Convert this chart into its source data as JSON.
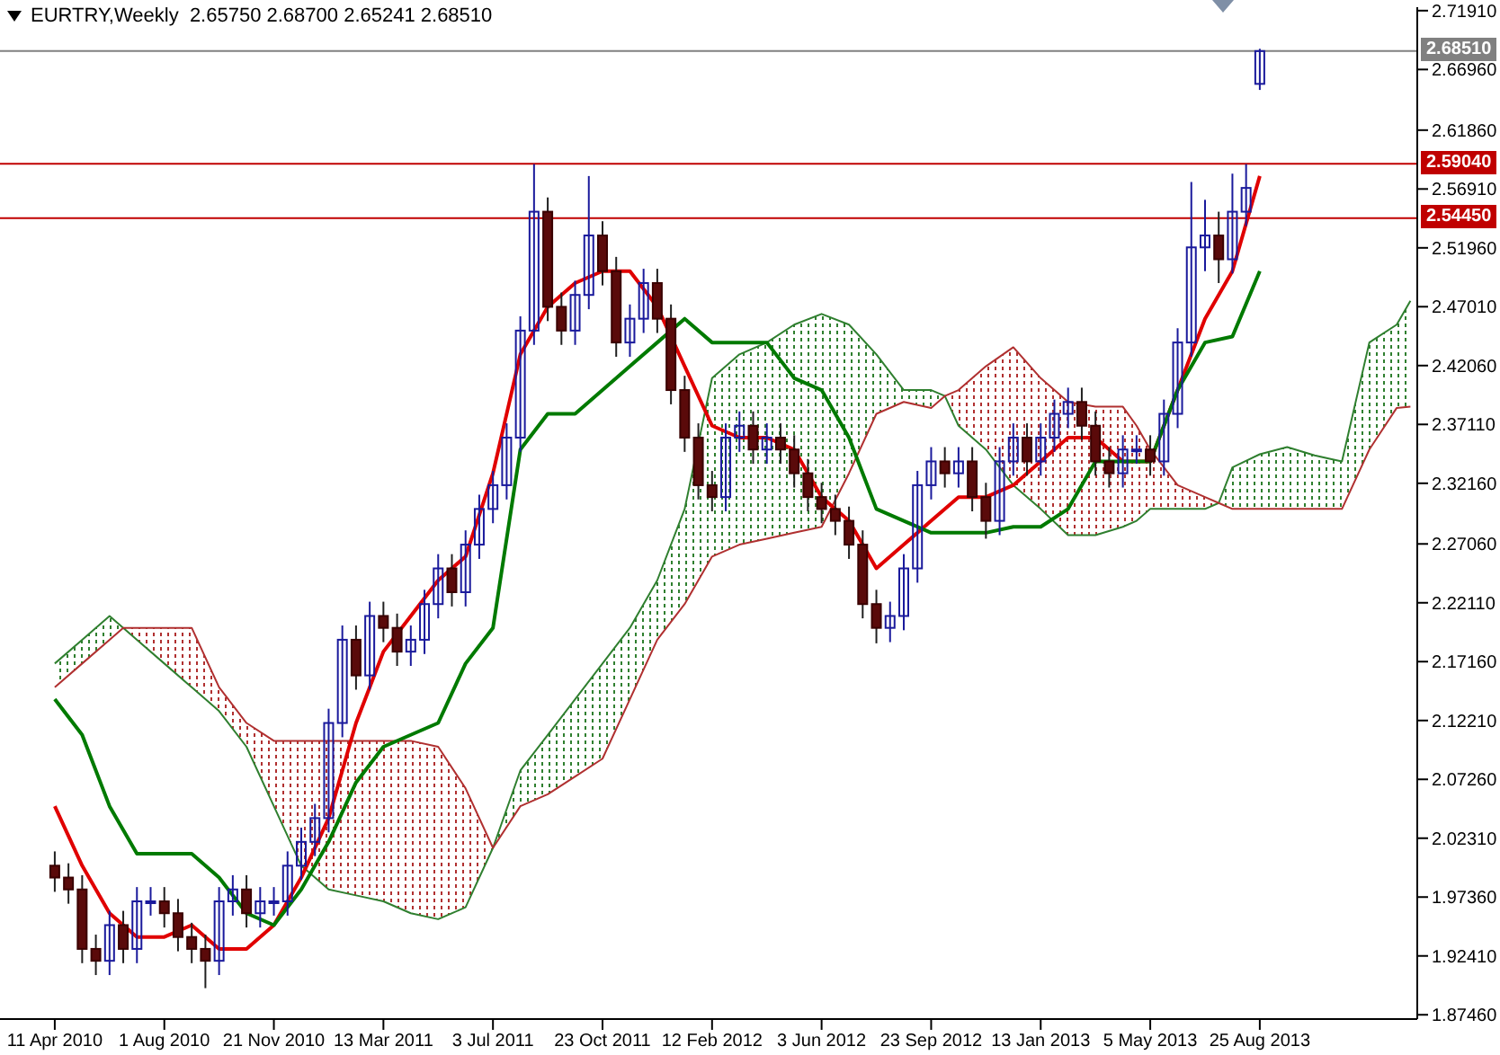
{
  "chart_data": {
    "type": "candlestick",
    "title": "EURTRY,Weekly  2.65750 2.68700 2.65241 2.68510",
    "x": [
      "2010-04-11",
      "2010-04-25",
      "2010-05-09",
      "2010-05-23",
      "2010-06-06",
      "2010-06-20",
      "2010-07-04",
      "2010-07-18",
      "2010-08-01",
      "2010-08-15",
      "2010-08-29",
      "2010-09-12",
      "2010-09-26",
      "2010-10-10",
      "2010-10-24",
      "2010-11-07",
      "2010-11-21",
      "2010-12-05",
      "2010-12-19",
      "2011-01-02",
      "2011-01-16",
      "2011-01-30",
      "2011-02-13",
      "2011-02-27",
      "2011-03-13",
      "2011-03-27",
      "2011-04-10",
      "2011-04-24",
      "2011-05-08",
      "2011-05-22",
      "2011-06-05",
      "2011-06-19",
      "2011-07-03",
      "2011-07-17",
      "2011-07-31",
      "2011-08-14",
      "2011-08-28",
      "2011-09-11",
      "2011-09-25",
      "2011-10-09",
      "2011-10-23",
      "2011-11-06",
      "2011-11-20",
      "2011-12-04",
      "2011-12-18",
      "2012-01-01",
      "2012-01-15",
      "2012-01-29",
      "2012-02-12",
      "2012-02-26",
      "2012-03-11",
      "2012-03-25",
      "2012-04-08",
      "2012-04-22",
      "2012-05-06",
      "2012-05-20",
      "2012-06-03",
      "2012-06-17",
      "2012-07-01",
      "2012-07-15",
      "2012-07-29",
      "2012-08-12",
      "2012-08-26",
      "2012-09-09",
      "2012-09-23",
      "2012-10-07",
      "2012-10-21",
      "2012-11-04",
      "2012-11-18",
      "2012-12-02",
      "2012-12-16",
      "2012-12-30",
      "2013-01-13",
      "2013-01-27",
      "2013-02-10",
      "2013-02-24",
      "2013-03-10",
      "2013-03-24",
      "2013-04-07",
      "2013-04-21",
      "2013-05-05",
      "2013-05-19",
      "2013-06-02",
      "2013-06-16",
      "2013-06-30",
      "2013-07-14",
      "2013-07-28",
      "2013-08-11",
      "2013-08-25"
    ],
    "ohlc": [
      [
        2.0,
        2.012,
        1.978,
        1.99
      ],
      [
        1.99,
        2.002,
        1.968,
        1.98
      ],
      [
        1.98,
        1.992,
        1.918,
        1.93
      ],
      [
        1.93,
        1.942,
        1.908,
        1.92
      ],
      [
        1.92,
        1.962,
        1.908,
        1.95
      ],
      [
        1.95,
        1.962,
        1.918,
        1.93
      ],
      [
        1.93,
        1.982,
        1.918,
        1.97
      ],
      [
        1.97,
        1.982,
        1.958,
        1.97
      ],
      [
        1.97,
        1.982,
        1.948,
        1.96
      ],
      [
        1.96,
        1.972,
        1.928,
        1.94
      ],
      [
        1.94,
        1.952,
        1.918,
        1.93
      ],
      [
        1.93,
        1.942,
        1.897,
        1.92
      ],
      [
        1.92,
        1.982,
        1.908,
        1.97
      ],
      [
        1.97,
        1.992,
        1.958,
        1.98
      ],
      [
        1.98,
        1.992,
        1.948,
        1.96
      ],
      [
        1.96,
        1.982,
        1.948,
        1.97
      ],
      [
        1.97,
        1.982,
        1.958,
        1.97
      ],
      [
        1.97,
        2.012,
        1.958,
        2.0
      ],
      [
        2.0,
        2.032,
        1.988,
        2.02
      ],
      [
        2.02,
        2.052,
        2.008,
        2.04
      ],
      [
        2.04,
        2.132,
        2.028,
        2.12
      ],
      [
        2.12,
        2.202,
        2.108,
        2.19
      ],
      [
        2.19,
        2.202,
        2.148,
        2.16
      ],
      [
        2.16,
        2.222,
        2.148,
        2.21
      ],
      [
        2.21,
        2.222,
        2.188,
        2.2
      ],
      [
        2.2,
        2.212,
        2.168,
        2.18
      ],
      [
        2.18,
        2.202,
        2.168,
        2.19
      ],
      [
        2.19,
        2.232,
        2.178,
        2.22
      ],
      [
        2.22,
        2.262,
        2.208,
        2.25
      ],
      [
        2.25,
        2.262,
        2.218,
        2.23
      ],
      [
        2.23,
        2.282,
        2.218,
        2.27
      ],
      [
        2.27,
        2.312,
        2.258,
        2.3
      ],
      [
        2.3,
        2.332,
        2.288,
        2.32
      ],
      [
        2.32,
        2.372,
        2.308,
        2.36
      ],
      [
        2.36,
        2.462,
        2.348,
        2.45
      ],
      [
        2.45,
        2.59,
        2.438,
        2.55
      ],
      [
        2.55,
        2.562,
        2.458,
        2.47
      ],
      [
        2.47,
        2.482,
        2.438,
        2.45
      ],
      [
        2.45,
        2.492,
        2.438,
        2.48
      ],
      [
        2.48,
        2.58,
        2.468,
        2.53
      ],
      [
        2.53,
        2.542,
        2.488,
        2.5
      ],
      [
        2.5,
        2.512,
        2.428,
        2.44
      ],
      [
        2.44,
        2.472,
        2.428,
        2.46
      ],
      [
        2.46,
        2.502,
        2.448,
        2.49
      ],
      [
        2.49,
        2.502,
        2.448,
        2.46
      ],
      [
        2.46,
        2.472,
        2.388,
        2.4
      ],
      [
        2.4,
        2.412,
        2.348,
        2.36
      ],
      [
        2.36,
        2.372,
        2.308,
        2.32
      ],
      [
        2.32,
        2.332,
        2.298,
        2.31
      ],
      [
        2.31,
        2.372,
        2.298,
        2.36
      ],
      [
        2.36,
        2.382,
        2.348,
        2.37
      ],
      [
        2.37,
        2.382,
        2.338,
        2.35
      ],
      [
        2.35,
        2.372,
        2.338,
        2.36
      ],
      [
        2.36,
        2.372,
        2.338,
        2.35
      ],
      [
        2.35,
        2.362,
        2.318,
        2.33
      ],
      [
        2.33,
        2.342,
        2.298,
        2.31
      ],
      [
        2.31,
        2.322,
        2.288,
        2.3
      ],
      [
        2.3,
        2.312,
        2.278,
        2.29
      ],
      [
        2.29,
        2.302,
        2.258,
        2.27
      ],
      [
        2.27,
        2.282,
        2.208,
        2.22
      ],
      [
        2.22,
        2.232,
        2.187,
        2.2
      ],
      [
        2.2,
        2.222,
        2.188,
        2.21
      ],
      [
        2.21,
        2.262,
        2.198,
        2.25
      ],
      [
        2.25,
        2.332,
        2.238,
        2.32
      ],
      [
        2.32,
        2.352,
        2.308,
        2.34
      ],
      [
        2.34,
        2.352,
        2.318,
        2.33
      ],
      [
        2.33,
        2.352,
        2.318,
        2.34
      ],
      [
        2.34,
        2.352,
        2.298,
        2.31
      ],
      [
        2.31,
        2.322,
        2.275,
        2.29
      ],
      [
        2.29,
        2.352,
        2.278,
        2.34
      ],
      [
        2.34,
        2.372,
        2.328,
        2.36
      ],
      [
        2.36,
        2.372,
        2.328,
        2.34
      ],
      [
        2.34,
        2.372,
        2.328,
        2.36
      ],
      [
        2.36,
        2.392,
        2.348,
        2.38
      ],
      [
        2.38,
        2.402,
        2.368,
        2.39
      ],
      [
        2.39,
        2.402,
        2.358,
        2.37
      ],
      [
        2.37,
        2.382,
        2.328,
        2.34
      ],
      [
        2.34,
        2.352,
        2.318,
        2.33
      ],
      [
        2.33,
        2.362,
        2.318,
        2.35
      ],
      [
        2.35,
        2.362,
        2.338,
        2.35
      ],
      [
        2.35,
        2.362,
        2.328,
        2.34
      ],
      [
        2.34,
        2.392,
        2.328,
        2.38
      ],
      [
        2.38,
        2.452,
        2.368,
        2.44
      ],
      [
        2.44,
        2.575,
        2.428,
        2.52
      ],
      [
        2.52,
        2.56,
        2.5,
        2.53
      ],
      [
        2.53,
        2.55,
        2.49,
        2.51
      ],
      [
        2.51,
        2.582,
        2.498,
        2.55
      ],
      [
        2.55,
        2.59,
        2.538,
        2.57
      ],
      [
        2.6575,
        2.687,
        2.65241,
        2.6851
      ]
    ],
    "series": [
      {
        "type": "line",
        "color": "#2f7f2f",
        "x": [
          "2010-04-11",
          "2010-05-09",
          "2010-06-06",
          "2010-06-20",
          "2010-07-04",
          "2010-08-01",
          "2010-08-29",
          "2010-09-26",
          "2010-10-24",
          "2010-11-21",
          "2010-12-19",
          "2011-01-16",
          "2011-02-13",
          "2011-03-13",
          "2011-04-10",
          "2011-05-08",
          "2011-06-05",
          "2011-07-03",
          "2011-07-31",
          "2011-08-28",
          "2011-09-25",
          "2011-10-23",
          "2011-11-20",
          "2011-12-18",
          "2012-01-15",
          "2012-02-12",
          "2012-03-11",
          "2012-04-08",
          "2012-05-06",
          "2012-06-03",
          "2012-07-01",
          "2012-07-29",
          "2012-08-26",
          "2012-09-23",
          "2012-10-07",
          "2012-10-21",
          "2012-11-18",
          "2012-12-16",
          "2013-01-13",
          "2013-02-10",
          "2013-03-10",
          "2013-04-07",
          "2013-04-21",
          "2013-05-05",
          "2013-06-02",
          "2013-06-30",
          "2013-07-14",
          "2013-07-28",
          "2013-08-25",
          "2013-09-22",
          "2013-10-20",
          "2013-11-17",
          "2013-12-15",
          "2014-01-12",
          "2014-01-26"
        ],
        "values": [
          2.17,
          2.19,
          2.21,
          2.2,
          2.19,
          2.17,
          2.15,
          2.13,
          2.1,
          2.05,
          2.0,
          1.98,
          1.975,
          1.97,
          1.96,
          1.955,
          1.965,
          2.015,
          2.08,
          2.11,
          2.14,
          2.17,
          2.2,
          2.24,
          2.3,
          2.41,
          2.43,
          2.44,
          2.455,
          2.464,
          2.455,
          2.43,
          2.4,
          2.4,
          2.395,
          2.37,
          2.35,
          2.32,
          2.3,
          2.278,
          2.278,
          2.285,
          2.29,
          2.3,
          2.3,
          2.3,
          2.305,
          2.335,
          2.346,
          2.352,
          2.345,
          2.34,
          2.44,
          2.455,
          2.475
        ]
      },
      {
        "type": "line",
        "color": "#b03030",
        "x": [
          "2010-04-11",
          "2010-05-09",
          "2010-06-06",
          "2010-06-20",
          "2010-07-04",
          "2010-08-01",
          "2010-08-29",
          "2010-09-26",
          "2010-10-24",
          "2010-11-21",
          "2010-12-19",
          "2011-01-16",
          "2011-02-13",
          "2011-03-13",
          "2011-04-10",
          "2011-05-08",
          "2011-06-05",
          "2011-07-03",
          "2011-07-31",
          "2011-08-28",
          "2011-09-25",
          "2011-10-23",
          "2011-11-20",
          "2011-12-18",
          "2012-01-15",
          "2012-02-12",
          "2012-03-11",
          "2012-04-08",
          "2012-05-06",
          "2012-06-03",
          "2012-07-01",
          "2012-07-29",
          "2012-08-26",
          "2012-09-23",
          "2012-10-07",
          "2012-10-21",
          "2012-11-18",
          "2012-12-16",
          "2013-01-13",
          "2013-02-10",
          "2013-03-10",
          "2013-04-07",
          "2013-04-21",
          "2013-05-05",
          "2013-06-02",
          "2013-06-30",
          "2013-07-14",
          "2013-07-28",
          "2013-08-25",
          "2013-09-22",
          "2013-10-20",
          "2013-11-17",
          "2013-12-15",
          "2014-01-12",
          "2014-01-26"
        ],
        "values": [
          2.15,
          2.17,
          2.19,
          2.2,
          2.2,
          2.2,
          2.2,
          2.15,
          2.12,
          2.105,
          2.105,
          2.105,
          2.105,
          2.105,
          2.105,
          2.1,
          2.065,
          2.015,
          2.05,
          2.06,
          2.075,
          2.09,
          2.14,
          2.19,
          2.22,
          2.26,
          2.27,
          2.275,
          2.28,
          2.285,
          2.33,
          2.38,
          2.39,
          2.385,
          2.395,
          2.4,
          2.42,
          2.436,
          2.41,
          2.39,
          2.386,
          2.386,
          2.37,
          2.35,
          2.32,
          2.31,
          2.305,
          2.3,
          2.3,
          2.3,
          2.3,
          2.3,
          2.35,
          2.385,
          2.386
        ]
      },
      {
        "type": "line",
        "color": "#e00000",
        "x": [
          "2010-04-11",
          "2010-05-09",
          "2010-06-06",
          "2010-07-04",
          "2010-08-01",
          "2010-08-29",
          "2010-09-26",
          "2010-10-24",
          "2010-11-21",
          "2010-12-19",
          "2011-01-16",
          "2011-02-13",
          "2011-03-13",
          "2011-04-10",
          "2011-05-08",
          "2011-06-05",
          "2011-07-03",
          "2011-07-31",
          "2011-08-28",
          "2011-09-25",
          "2011-10-23",
          "2011-11-20",
          "2011-12-18",
          "2012-01-15",
          "2012-02-12",
          "2012-03-11",
          "2012-04-08",
          "2012-05-06",
          "2012-06-03",
          "2012-07-01",
          "2012-07-29",
          "2012-08-26",
          "2012-09-23",
          "2012-10-21",
          "2012-11-18",
          "2012-12-16",
          "2013-01-13",
          "2013-02-10",
          "2013-03-10",
          "2013-04-07",
          "2013-05-05",
          "2013-06-02",
          "2013-06-30",
          "2013-07-28",
          "2013-08-25"
        ],
        "values": [
          2.05,
          2.0,
          1.96,
          1.94,
          1.94,
          1.95,
          1.93,
          1.93,
          1.95,
          1.99,
          2.04,
          2.12,
          2.18,
          2.21,
          2.24,
          2.26,
          2.33,
          2.43,
          2.47,
          2.49,
          2.5,
          2.5,
          2.47,
          2.42,
          2.37,
          2.36,
          2.36,
          2.35,
          2.31,
          2.29,
          2.25,
          2.27,
          2.29,
          2.31,
          2.31,
          2.32,
          2.34,
          2.36,
          2.36,
          2.34,
          2.34,
          2.4,
          2.46,
          2.5,
          2.58
        ]
      },
      {
        "type": "line",
        "color": "#007a00",
        "x": [
          "2010-04-11",
          "2010-05-09",
          "2010-06-06",
          "2010-07-04",
          "2010-08-01",
          "2010-08-29",
          "2010-09-26",
          "2010-10-24",
          "2010-11-21",
          "2010-12-19",
          "2011-01-16",
          "2011-02-13",
          "2011-03-13",
          "2011-04-10",
          "2011-05-08",
          "2011-06-05",
          "2011-07-03",
          "2011-07-31",
          "2011-08-28",
          "2011-09-25",
          "2011-10-23",
          "2011-11-20",
          "2011-12-18",
          "2012-01-15",
          "2012-02-12",
          "2012-03-11",
          "2012-04-08",
          "2012-05-06",
          "2012-06-03",
          "2012-07-01",
          "2012-07-29",
          "2012-08-26",
          "2012-09-23",
          "2012-10-21",
          "2012-11-18",
          "2012-12-16",
          "2013-01-13",
          "2013-02-10",
          "2013-03-10",
          "2013-04-07",
          "2013-05-05",
          "2013-06-02",
          "2013-06-30",
          "2013-07-28",
          "2013-08-25"
        ],
        "values": [
          2.14,
          2.11,
          2.05,
          2.01,
          2.01,
          2.01,
          1.99,
          1.96,
          1.95,
          1.98,
          2.02,
          2.07,
          2.1,
          2.11,
          2.12,
          2.17,
          2.2,
          2.35,
          2.38,
          2.38,
          2.4,
          2.42,
          2.44,
          2.46,
          2.44,
          2.44,
          2.44,
          2.41,
          2.4,
          2.36,
          2.3,
          2.29,
          2.28,
          2.28,
          2.28,
          2.285,
          2.285,
          2.3,
          2.34,
          2.34,
          2.34,
          2.4,
          2.44,
          2.445,
          2.5
        ]
      }
    ],
    "ref_lines": [
      {
        "axis": "y",
        "value": 2.6851,
        "label": "2.68510",
        "color": "#808080"
      },
      {
        "axis": "y",
        "value": 2.5904,
        "label": "2.59040",
        "color": "#c00000"
      },
      {
        "axis": "y",
        "value": 2.5445,
        "label": "2.54450",
        "color": "#c00000"
      }
    ],
    "xlim": [
      "2010-02-14",
      "2014-02-02"
    ],
    "xticks": [
      {
        "value": "2010-04-11",
        "label": "11 Apr 2010"
      },
      {
        "value": "2010-08-01",
        "label": "1 Aug 2010"
      },
      {
        "value": "2010-11-21",
        "label": "21 Nov 2010"
      },
      {
        "value": "2011-03-13",
        "label": "13 Mar 2011"
      },
      {
        "value": "2011-07-03",
        "label": "3 Jul 2011"
      },
      {
        "value": "2011-10-23",
        "label": "23 Oct 2011"
      },
      {
        "value": "2012-02-12",
        "label": "12 Feb 2012"
      },
      {
        "value": "2012-06-03",
        "label": "3 Jun 2012"
      },
      {
        "value": "2012-09-23",
        "label": "23 Sep 2012"
      },
      {
        "value": "2013-01-13",
        "label": "13 Jan 2013"
      },
      {
        "value": "2013-05-05",
        "label": "5 May 2013"
      },
      {
        "value": "2013-08-25",
        "label": "25 Aug 2013"
      }
    ],
    "ylim": [
      1.871,
      2.722
    ],
    "yticks": [
      {
        "value": 1.8746,
        "label": "1.87460"
      },
      {
        "value": 1.9241,
        "label": "1.92410"
      },
      {
        "value": 1.9736,
        "label": "1.97360"
      },
      {
        "value": 2.0231,
        "label": "2.02310"
      },
      {
        "value": 2.0726,
        "label": "2.07260"
      },
      {
        "value": 2.1221,
        "label": "2.12210"
      },
      {
        "value": 2.1716,
        "label": "2.17160"
      },
      {
        "value": 2.2211,
        "label": "2.22110"
      },
      {
        "value": 2.2706,
        "label": "2.27060"
      },
      {
        "value": 2.3216,
        "label": "2.32160"
      },
      {
        "value": 2.3711,
        "label": "2.37110"
      },
      {
        "value": 2.4206,
        "label": "2.42060"
      },
      {
        "value": 2.4701,
        "label": "2.47010"
      },
      {
        "value": 2.5196,
        "label": "2.51960"
      },
      {
        "value": 2.5691,
        "label": "2.56910"
      },
      {
        "value": 2.6186,
        "label": "2.61860"
      },
      {
        "value": 2.6696,
        "label": "2.66960"
      },
      {
        "value": 2.7191,
        "label": "2.71910"
      }
    ],
    "grid": false,
    "legend": false
  }
}
